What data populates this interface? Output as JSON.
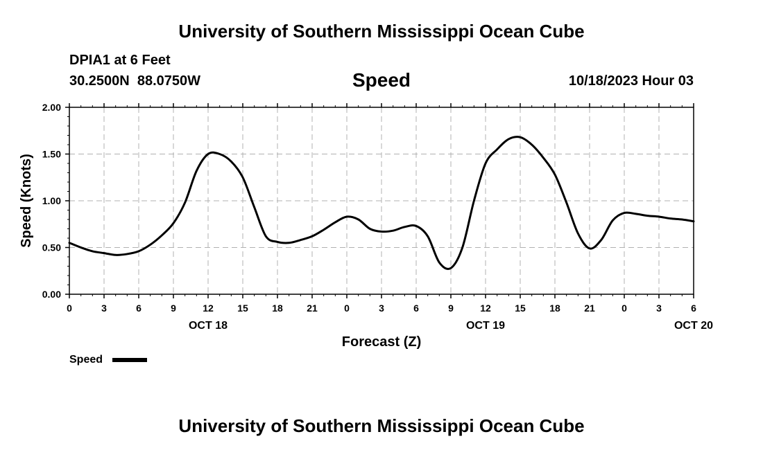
{
  "header": {
    "title": "University of Southern Mississippi Ocean Cube",
    "station": "DPIA1 at 6 Feet",
    "location": "30.2500N  88.0750W",
    "variable": "Speed",
    "timestamp": "10/18/2023 Hour 03"
  },
  "footer": {
    "title": "University of Southern Mississippi Ocean Cube"
  },
  "chart_data": {
    "type": "line",
    "title": "Speed",
    "xlabel": "Forecast (Z)",
    "ylabel": "Speed (Knots)",
    "ylim": [
      0,
      2
    ],
    "xlim": [
      0,
      54
    ],
    "x_unit": "hours from 10/18/2023 00Z",
    "y_ticks": [
      "0.00",
      "0.50",
      "1.00",
      "1.50",
      "2.00"
    ],
    "x_ticks": [
      {
        "x": 0,
        "label": "0"
      },
      {
        "x": 3,
        "label": "3"
      },
      {
        "x": 6,
        "label": "6"
      },
      {
        "x": 9,
        "label": "9"
      },
      {
        "x": 12,
        "label": "12"
      },
      {
        "x": 15,
        "label": "15"
      },
      {
        "x": 18,
        "label": "18"
      },
      {
        "x": 21,
        "label": "21"
      },
      {
        "x": 24,
        "label": "0"
      },
      {
        "x": 27,
        "label": "3"
      },
      {
        "x": 30,
        "label": "6"
      },
      {
        "x": 33,
        "label": "9"
      },
      {
        "x": 36,
        "label": "12"
      },
      {
        "x": 39,
        "label": "15"
      },
      {
        "x": 42,
        "label": "18"
      },
      {
        "x": 45,
        "label": "21"
      },
      {
        "x": 48,
        "label": "0"
      },
      {
        "x": 51,
        "label": "3"
      },
      {
        "x": 54,
        "label": "6"
      }
    ],
    "date_labels": [
      {
        "x": 12,
        "label": "OCT 18"
      },
      {
        "x": 36,
        "label": "OCT 19"
      },
      {
        "x": 54,
        "label": "OCT 20"
      }
    ],
    "grid": true,
    "legend": "bottom-left",
    "series": [
      {
        "name": "Speed",
        "color": "#000000",
        "x": [
          0,
          1,
          2,
          3,
          4,
          5,
          6,
          7,
          8,
          9,
          10,
          11,
          12,
          13,
          14,
          15,
          16,
          17,
          18,
          19,
          20,
          21,
          22,
          23,
          24,
          25,
          26,
          27,
          28,
          29,
          30,
          31,
          32,
          33,
          34,
          35,
          36,
          37,
          38,
          39,
          40,
          41,
          42,
          43,
          44,
          45,
          46,
          47,
          48,
          49,
          50,
          51,
          52,
          53,
          54
        ],
        "y": [
          0.55,
          0.5,
          0.46,
          0.44,
          0.42,
          0.43,
          0.46,
          0.53,
          0.63,
          0.76,
          0.98,
          1.32,
          1.5,
          1.5,
          1.42,
          1.25,
          0.93,
          0.62,
          0.56,
          0.55,
          0.58,
          0.62,
          0.69,
          0.77,
          0.83,
          0.8,
          0.7,
          0.67,
          0.68,
          0.72,
          0.73,
          0.62,
          0.34,
          0.28,
          0.5,
          1.0,
          1.4,
          1.55,
          1.66,
          1.68,
          1.6,
          1.46,
          1.28,
          0.98,
          0.65,
          0.49,
          0.58,
          0.79,
          0.87,
          0.86,
          0.84,
          0.83,
          0.81,
          0.8,
          0.78
        ]
      }
    ]
  }
}
